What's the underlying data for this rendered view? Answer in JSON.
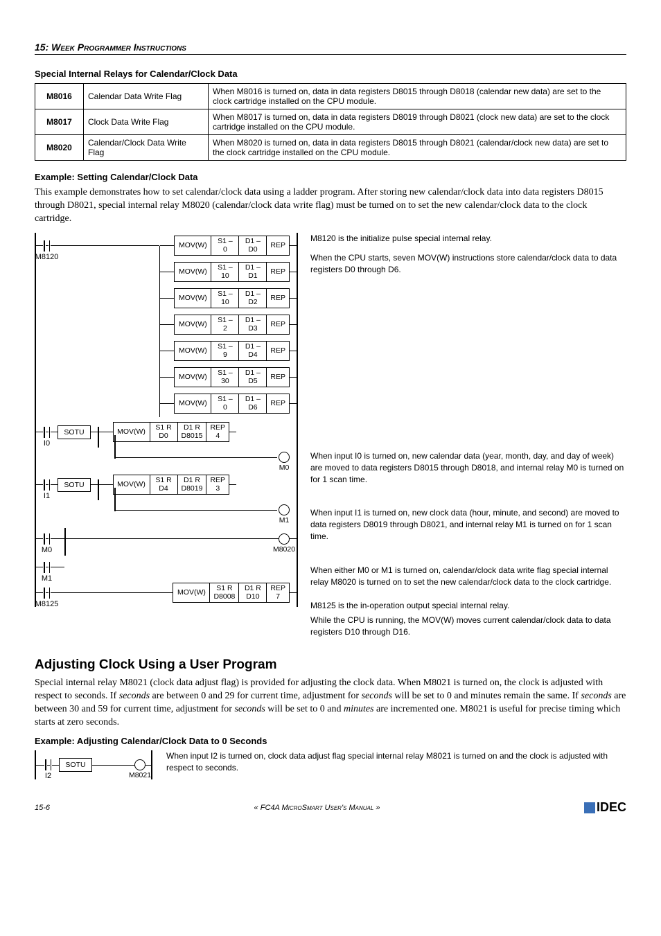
{
  "chapter": {
    "num": "15:",
    "title": "Week Programmer Instructions"
  },
  "relays_heading": "Special Internal Relays for Calendar/Clock Data",
  "relays": [
    {
      "code": "M8016",
      "name": "Calendar Data Write Flag",
      "desc": "When M8016 is turned on, data in data registers D8015 through D8018 (calendar new data) are set to the clock cartridge installed on the CPU module."
    },
    {
      "code": "M8017",
      "name": "Clock Data Write Flag",
      "desc": "When M8017 is turned on, data in data registers D8019 through D8021 (clock new data) are set to the clock cartridge installed on the CPU module."
    },
    {
      "code": "M8020",
      "name": "Calendar/Clock Data Write Flag",
      "desc": "When M8020 is turned on, data in data registers D8015 through D8021 (calendar/clock new data) are set to the clock cartridge installed on the CPU module."
    }
  ],
  "example1_heading": "Example: Setting Calendar/Clock Data",
  "example1_para": "This example demonstrates how to set calendar/clock data using a ladder program. After storing new calendar/clock data into data registers D8015 through D8021, special internal relay M8020 (calendar/clock data write flag) must be turned on to set the new calendar/clock data to the clock cartridge.",
  "ladder": {
    "top_contact": "M8120",
    "mov_rows": [
      {
        "op": "MOV(W)",
        "s1a": "S1 –",
        "s1b": "0",
        "d1a": "D1 –",
        "d1b": "D0",
        "rep": "REP"
      },
      {
        "op": "MOV(W)",
        "s1a": "S1 –",
        "s1b": "10",
        "d1a": "D1 –",
        "d1b": "D1",
        "rep": "REP"
      },
      {
        "op": "MOV(W)",
        "s1a": "S1 –",
        "s1b": "10",
        "d1a": "D1 –",
        "d1b": "D2",
        "rep": "REP"
      },
      {
        "op": "MOV(W)",
        "s1a": "S1 –",
        "s1b": "2",
        "d1a": "D1 –",
        "d1b": "D3",
        "rep": "REP"
      },
      {
        "op": "MOV(W)",
        "s1a": "S1 –",
        "s1b": "9",
        "d1a": "D1 –",
        "d1b": "D4",
        "rep": "REP"
      },
      {
        "op": "MOV(W)",
        "s1a": "S1 –",
        "s1b": "30",
        "d1a": "D1 –",
        "d1b": "D5",
        "rep": "REP"
      },
      {
        "op": "MOV(W)",
        "s1a": "S1 –",
        "s1b": "0",
        "d1a": "D1 –",
        "d1b": "D6",
        "rep": "REP"
      }
    ],
    "i0": {
      "contact": "I0",
      "sotu": "SOTU",
      "op": "MOV(W)",
      "s1a": "S1 R",
      "s1b": "D0",
      "d1a": "D1 R",
      "d1b": "D8015",
      "rep": "REP",
      "repn": "4",
      "coil": "M0"
    },
    "i1": {
      "contact": "I1",
      "sotu": "SOTU",
      "op": "MOV(W)",
      "s1a": "S1 R",
      "s1b": "D4",
      "d1a": "D1 R",
      "d1b": "D8019",
      "rep": "REP",
      "repn": "3",
      "coil": "M1"
    },
    "m0m1": {
      "c1": "M0",
      "c2": "M1",
      "coil": "M8020"
    },
    "m8125": {
      "contact": "M8125",
      "op": "MOV(W)",
      "s1a": "S1 R",
      "s1b": "D8008",
      "d1a": "D1 R",
      "d1b": "D10",
      "rep": "REP",
      "repn": "7"
    }
  },
  "descs": {
    "d1": "M8120 is the initialize pulse special internal relay.",
    "d2": "When the CPU starts, seven MOV(W) instructions store calendar/clock data to data registers D0 through D6.",
    "d3": "When input I0 is turned on, new calendar data (year, month, day, and day of week) are moved to data registers D8015 through D8018, and internal relay M0 is turned on for 1 scan time.",
    "d4": "When input I1 is turned on, new clock data (hour, minute, and second) are moved to data registers D8019 through D8021, and internal relay M1 is turned on for 1 scan time.",
    "d5": "When either M0 or M1 is turned on, calendar/clock data write flag special internal relay M8020 is turned on to set the new calendar/clock data to the clock cartridge.",
    "d6": "M8125 is the in-operation output special internal relay.",
    "d7": "While the CPU is running, the MOV(W) moves current calendar/clock data to data registers D10 through D16."
  },
  "section2_heading": "Adjusting Clock Using a User Program",
  "section2_para": "Special internal relay M8021 (clock data adjust flag) is provided for adjusting the clock data. When M8021 is turned on, the clock is adjusted with respect to seconds. If seconds are between 0 and 29 for current time, adjustment for seconds will be set to 0 and minutes remain the same. If seconds are between 30 and 59 for current time, adjustment for seconds will be set to 0 and minutes are incremented one. M8021 is useful for precise timing which starts at zero seconds.",
  "example2_heading": "Example: Adjusting Calendar/Clock Data to 0 Seconds",
  "example2": {
    "contact": "I2",
    "sotu": "SOTU",
    "coil": "M8021",
    "desc": "When input I2 is turned on, clock data adjust flag special internal relay M8021 is turned on and the clock is adjusted with respect to seconds."
  },
  "footer": {
    "left": "15-6",
    "center": "« FC4A MicroSmart User's Manual »",
    "logo": "IDEC"
  }
}
